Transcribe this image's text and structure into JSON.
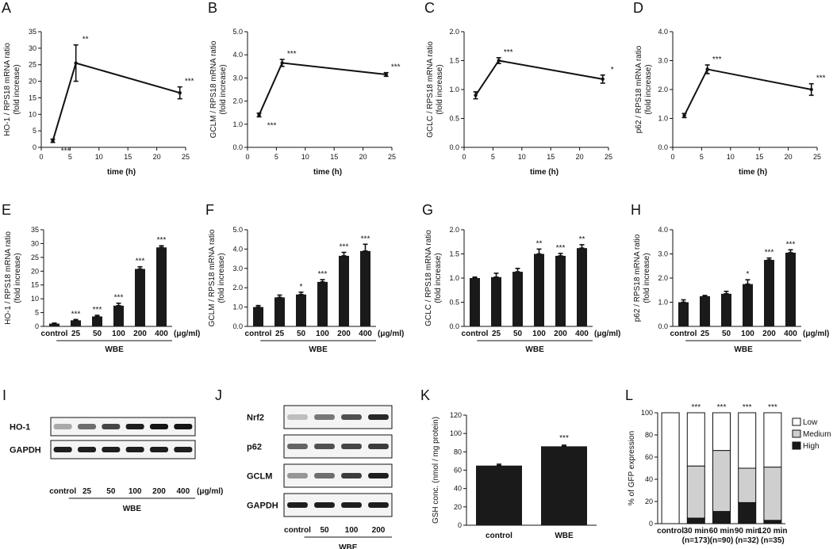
{
  "colors": {
    "ink": "#111111",
    "bar": "#1a1a1a",
    "medium": "#cfcfcf",
    "white": "#ffffff",
    "blotBg": "#f4f4f4"
  },
  "unit_label": "(μg/ml)",
  "wbe_label": "WBE",
  "time_panels": [
    {
      "letter": "A",
      "ylabel1": "HO-1 / RPS18 mRNA ratio",
      "ylabel2": "(fold increase)",
      "xlabel": "time (h)",
      "ylim": [
        0,
        35
      ],
      "ystep": 5,
      "ydec": 0,
      "xlim": [
        0,
        25
      ],
      "xticks": [
        0,
        5,
        10,
        15,
        20,
        25
      ],
      "x": [
        2,
        6,
        24
      ],
      "y": [
        2,
        25.5,
        16.5
      ],
      "err": [
        0.5,
        5.5,
        1.8
      ],
      "stars": [
        "***",
        "**",
        "***"
      ],
      "starSide": [
        "below",
        "above",
        "above"
      ]
    },
    {
      "letter": "B",
      "ylabel1": "GCLM / RPS18 mRNA ratio",
      "ylabel2": "(fold increase)",
      "xlabel": "time (h)",
      "ylim": [
        0,
        5
      ],
      "ystep": 1,
      "ydec": 1,
      "xlim": [
        0,
        25
      ],
      "xticks": [
        0,
        5,
        10,
        15,
        20,
        25
      ],
      "x": [
        2,
        6,
        24
      ],
      "y": [
        1.4,
        3.65,
        3.15
      ],
      "err": [
        0.08,
        0.15,
        0.08
      ],
      "stars": [
        "***",
        "***",
        "***"
      ],
      "starSide": [
        "below",
        "above",
        "above"
      ]
    },
    {
      "letter": "C",
      "ylabel1": "GCLC / RPS18 mRNA ratio",
      "ylabel2": "(fold increase)",
      "xlabel": "time (h)",
      "ylim": [
        0,
        2
      ],
      "ystep": 0.5,
      "ydec": 1,
      "xlim": [
        0,
        25
      ],
      "xticks": [
        0,
        5,
        10,
        15,
        20,
        25
      ],
      "x": [
        2,
        6,
        24
      ],
      "y": [
        0.9,
        1.5,
        1.18
      ],
      "err": [
        0.06,
        0.05,
        0.07
      ],
      "stars": [
        "",
        "***",
        "*"
      ],
      "starSide": [
        "above",
        "above",
        "above"
      ]
    },
    {
      "letter": "D",
      "ylabel1": "p62 / RPS18 mRNA ratio",
      "ylabel2": "(fold increase)",
      "xlabel": "time (h)",
      "ylim": [
        0,
        4
      ],
      "ystep": 1,
      "ydec": 1,
      "xlim": [
        0,
        25
      ],
      "xticks": [
        0,
        5,
        10,
        15,
        20,
        25
      ],
      "x": [
        2,
        6,
        24
      ],
      "y": [
        1.1,
        2.7,
        2.0
      ],
      "err": [
        0.07,
        0.15,
        0.2
      ],
      "stars": [
        "",
        "***",
        "***"
      ],
      "starSide": [
        "above",
        "above",
        "above"
      ]
    }
  ],
  "dose_panels": [
    {
      "letter": "E",
      "ylabel1": "HO-1 / RPS18 mRNA ratio",
      "ylabel2": "(fold increase)",
      "ylim": [
        0,
        35
      ],
      "ystep": 5,
      "ydec": 0,
      "categories": [
        "control",
        "25",
        "50",
        "100",
        "200",
        "400"
      ],
      "values": [
        1,
        2.2,
        3.6,
        7.5,
        20.8,
        28.6
      ],
      "err": [
        0.2,
        0.3,
        0.4,
        0.9,
        0.8,
        0.6
      ],
      "stars": [
        "",
        "***",
        "***",
        "***",
        "***",
        "***"
      ]
    },
    {
      "letter": "F",
      "ylabel1": "GCLM / RPS18 mRNA ratio",
      "ylabel2": "(fold increase)",
      "ylim": [
        0,
        5
      ],
      "ystep": 1,
      "ydec": 1,
      "categories": [
        "control",
        "25",
        "50",
        "100",
        "200",
        "400"
      ],
      "values": [
        1.0,
        1.5,
        1.65,
        2.3,
        3.65,
        3.9
      ],
      "err": [
        0.08,
        0.12,
        0.12,
        0.12,
        0.18,
        0.35
      ],
      "stars": [
        "",
        "",
        "*",
        "***",
        "***",
        "***"
      ]
    },
    {
      "letter": "G",
      "ylabel1": "GCLC / RPS18 mRNA ratio",
      "ylabel2": "(fold increase)",
      "ylim": [
        0,
        2
      ],
      "ystep": 0.5,
      "ydec": 1,
      "categories": [
        "control",
        "25",
        "50",
        "100",
        "200",
        "400"
      ],
      "values": [
        1.0,
        1.02,
        1.13,
        1.5,
        1.46,
        1.62
      ],
      "err": [
        0.02,
        0.08,
        0.07,
        0.1,
        0.05,
        0.07
      ],
      "stars": [
        "",
        "",
        "",
        "**",
        "***",
        "**"
      ]
    },
    {
      "letter": "H",
      "ylabel1": "p62 / RPS18 mRNA ratio",
      "ylabel2": "(fold increase)",
      "ylim": [
        0,
        4
      ],
      "ystep": 1,
      "ydec": 1,
      "categories": [
        "control",
        "25",
        "50",
        "100",
        "200",
        "400"
      ],
      "values": [
        1.0,
        1.25,
        1.35,
        1.75,
        2.75,
        3.05
      ],
      "err": [
        0.1,
        0.03,
        0.1,
        0.18,
        0.08,
        0.12
      ],
      "stars": [
        "",
        "",
        "",
        "*",
        "***",
        "***"
      ]
    }
  ],
  "blots": {
    "I": {
      "letter": "I",
      "rows": [
        "HO-1",
        "GAPDH"
      ],
      "lanes": [
        "control",
        "25",
        "50",
        "100",
        "200",
        "400"
      ],
      "intensity": [
        [
          0.25,
          0.55,
          0.75,
          0.95,
          1.0,
          1.0
        ],
        [
          0.95,
          0.95,
          0.95,
          0.95,
          0.95,
          0.95
        ]
      ]
    },
    "J": {
      "letter": "J",
      "rows": [
        "Nrf2",
        "p62",
        "GCLM",
        "GAPDH"
      ],
      "lanes": [
        "control",
        "50",
        "100",
        "200"
      ],
      "intensity": [
        [
          0.15,
          0.5,
          0.7,
          0.9
        ],
        [
          0.6,
          0.7,
          0.75,
          0.8
        ],
        [
          0.35,
          0.55,
          0.8,
          0.95
        ],
        [
          0.95,
          0.95,
          0.95,
          0.95
        ]
      ]
    }
  },
  "gsh_panel": {
    "letter": "K",
    "ylabel": "GSH conc. (nmol / mg protein)",
    "ylim": [
      0,
      120
    ],
    "ystep": 20,
    "categories": [
      "control",
      "WBE"
    ],
    "values": [
      65,
      86
    ],
    "err": [
      1.5,
      1.2
    ],
    "stars": [
      "",
      "***"
    ]
  },
  "gfp_panel": {
    "letter": "L",
    "ylabel": "% of GFP expression",
    "ylim": [
      0,
      100
    ],
    "ystep": 20,
    "categories": [
      "control",
      "30 min",
      "60 min",
      "90 min",
      "120 min"
    ],
    "subcats": [
      "",
      "(n=173)",
      "(n=90)",
      "(n=32)",
      "(n=35)"
    ],
    "series": [
      {
        "name": "High",
        "values": [
          0,
          5,
          11,
          19,
          3
        ]
      },
      {
        "name": "Medium",
        "values": [
          0,
          47,
          55,
          31,
          48
        ]
      },
      {
        "name": "Low",
        "values": [
          100,
          48,
          34,
          50,
          49
        ]
      }
    ],
    "legend": [
      "Low",
      "Medium",
      "High"
    ],
    "stars": [
      "",
      "***",
      "***",
      "***",
      "***"
    ]
  },
  "chart_data": [
    {
      "type": "line",
      "title": "A",
      "xlabel": "time (h)",
      "ylabel": "HO-1 / RPS18 mRNA ratio (fold increase)",
      "x": [
        2,
        6,
        24
      ],
      "y": [
        2,
        25.5,
        16.5
      ],
      "ylim": [
        0,
        35
      ],
      "xlim": [
        0,
        25
      ]
    },
    {
      "type": "line",
      "title": "B",
      "xlabel": "time (h)",
      "ylabel": "GCLM / RPS18 mRNA ratio (fold increase)",
      "x": [
        2,
        6,
        24
      ],
      "y": [
        1.4,
        3.65,
        3.15
      ],
      "ylim": [
        0,
        5
      ],
      "xlim": [
        0,
        25
      ]
    },
    {
      "type": "line",
      "title": "C",
      "xlabel": "time (h)",
      "ylabel": "GCLC / RPS18 mRNA ratio (fold increase)",
      "x": [
        2,
        6,
        24
      ],
      "y": [
        0.9,
        1.5,
        1.18
      ],
      "ylim": [
        0,
        2
      ],
      "xlim": [
        0,
        25
      ]
    },
    {
      "type": "line",
      "title": "D",
      "xlabel": "time (h)",
      "ylabel": "p62 / RPS18 mRNA ratio (fold increase)",
      "x": [
        2,
        6,
        24
      ],
      "y": [
        1.1,
        2.7,
        2.0
      ],
      "ylim": [
        0,
        4
      ],
      "xlim": [
        0,
        25
      ]
    },
    {
      "type": "bar",
      "title": "E",
      "xlabel": "WBE (μg/ml)",
      "ylabel": "HO-1 / RPS18 mRNA ratio (fold increase)",
      "categories": [
        "control",
        "25",
        "50",
        "100",
        "200",
        "400"
      ],
      "values": [
        1,
        2.2,
        3.6,
        7.5,
        20.8,
        28.6
      ],
      "ylim": [
        0,
        35
      ]
    },
    {
      "type": "bar",
      "title": "F",
      "xlabel": "WBE (μg/ml)",
      "ylabel": "GCLM / RPS18 mRNA ratio (fold increase)",
      "categories": [
        "control",
        "25",
        "50",
        "100",
        "200",
        "400"
      ],
      "values": [
        1.0,
        1.5,
        1.65,
        2.3,
        3.65,
        3.9
      ],
      "ylim": [
        0,
        5
      ]
    },
    {
      "type": "bar",
      "title": "G",
      "xlabel": "WBE (μg/ml)",
      "ylabel": "GCLC / RPS18 mRNA ratio (fold increase)",
      "categories": [
        "control",
        "25",
        "50",
        "100",
        "200",
        "400"
      ],
      "values": [
        1.0,
        1.02,
        1.13,
        1.5,
        1.46,
        1.62
      ],
      "ylim": [
        0,
        2
      ]
    },
    {
      "type": "bar",
      "title": "H",
      "xlabel": "WBE (μg/ml)",
      "ylabel": "p62 / RPS18 mRNA ratio (fold increase)",
      "categories": [
        "control",
        "25",
        "50",
        "100",
        "200",
        "400"
      ],
      "values": [
        1.0,
        1.25,
        1.35,
        1.75,
        2.75,
        3.05
      ],
      "ylim": [
        0,
        4
      ]
    },
    {
      "type": "bar",
      "title": "K",
      "ylabel": "GSH conc. (nmol / mg protein)",
      "categories": [
        "control",
        "WBE"
      ],
      "values": [
        65,
        86
      ],
      "ylim": [
        0,
        120
      ]
    },
    {
      "type": "bar",
      "title": "L",
      "ylabel": "% of GFP expression",
      "stacked": true,
      "categories": [
        "control",
        "30 min",
        "60 min",
        "90 min",
        "120 min"
      ],
      "series": [
        {
          "name": "High",
          "values": [
            0,
            5,
            11,
            19,
            3
          ]
        },
        {
          "name": "Medium",
          "values": [
            0,
            47,
            55,
            31,
            48
          ]
        },
        {
          "name": "Low",
          "values": [
            100,
            48,
            34,
            50,
            49
          ]
        }
      ],
      "ylim": [
        0,
        100
      ]
    }
  ]
}
